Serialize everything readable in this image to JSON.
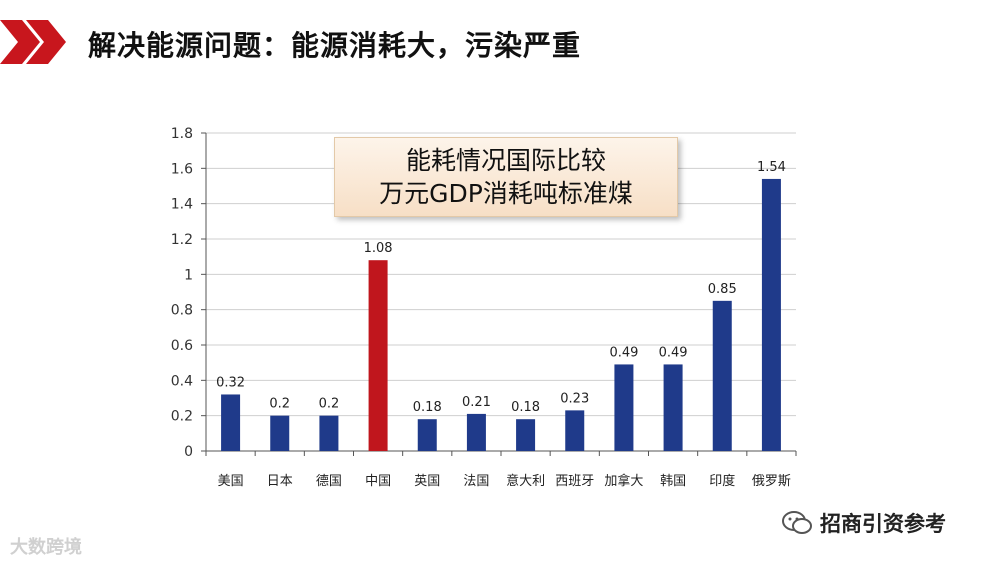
{
  "header": {
    "title": "解决能源问题：能源消耗大，污染严重",
    "accent_color": "#c8161d"
  },
  "chart_title": {
    "line1": "能耗情况国际比较",
    "line2": "万元GDP消耗吨标准煤"
  },
  "watermarks": {
    "left_text": "大数跨境",
    "right_text": "招商引资参考"
  },
  "chart_data": {
    "type": "bar",
    "categories": [
      "美国",
      "日本",
      "德国",
      "中国",
      "英国",
      "法国",
      "意大利",
      "西班牙",
      "加拿大",
      "韩国",
      "印度",
      "俄罗斯"
    ],
    "values": [
      0.32,
      0.2,
      0.2,
      1.08,
      0.18,
      0.21,
      0.18,
      0.23,
      0.49,
      0.49,
      0.85,
      1.54
    ],
    "value_labels": [
      "0.32",
      "0.2",
      "0.2",
      "1.08",
      "0.18",
      "0.21",
      "0.18",
      "0.23",
      "0.49",
      "0.49",
      "0.85",
      "1.54"
    ],
    "highlight_index": 3,
    "colors": {
      "bar": "#1f3a8a",
      "highlight": "#c0161d"
    },
    "ylim": [
      0,
      1.8
    ],
    "yticks": [
      "0",
      "0.2",
      "0.4",
      "0.6",
      "0.8",
      "1",
      "1.2",
      "1.4",
      "1.6",
      "1.8"
    ],
    "grid": true,
    "legend": "none"
  }
}
